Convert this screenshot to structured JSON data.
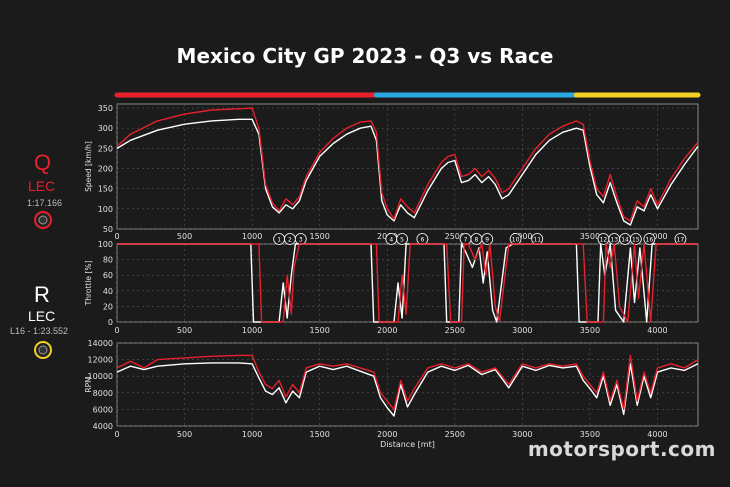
{
  "title": "Mexico City GP 2023 - Q3 vs Race",
  "legend": {
    "q": {
      "letter": "Q",
      "driver": "LEC",
      "time": "1:17.166",
      "color": "#e8202c"
    },
    "r": {
      "letter": "R",
      "driver": "LEC",
      "time": "L16 - 1:23.552",
      "color": "#ffffff"
    }
  },
  "watermark": "motorsport.com",
  "colors": {
    "background": "#1b1b1b",
    "q_line": "#e8202c",
    "r_line": "#ffffff",
    "sector1": "#e8202c",
    "sector2": "#29a8e0",
    "sector3": "#f2d024",
    "grid": "#5a5a5a"
  },
  "chart_data": [
    {
      "type": "line",
      "panel": "speed",
      "xlabel": "",
      "ylabel": "Speed [km/h]",
      "xlim": [
        0,
        4300
      ],
      "ylim": [
        50,
        360
      ],
      "xticks": [
        0,
        500,
        1000,
        1500,
        2000,
        2500,
        3000,
        3500,
        4000
      ],
      "yticks": [
        50,
        100,
        150,
        200,
        250,
        300,
        350
      ],
      "sectors": [
        {
          "from": 0,
          "to": 1920,
          "color": "#e8202c"
        },
        {
          "from": 1920,
          "to": 3400,
          "color": "#29a8e0"
        },
        {
          "from": 3400,
          "to": 4300,
          "color": "#f2d024"
        }
      ],
      "series": [
        {
          "name": "Q",
          "color": "#e8202c",
          "x": [
            0,
            100,
            300,
            500,
            700,
            900,
            1000,
            1050,
            1100,
            1150,
            1200,
            1250,
            1300,
            1350,
            1400,
            1500,
            1600,
            1700,
            1800,
            1880,
            1920,
            1960,
            2000,
            2050,
            2100,
            2150,
            2200,
            2300,
            2400,
            2450,
            2500,
            2550,
            2600,
            2650,
            2700,
            2750,
            2800,
            2850,
            2900,
            3000,
            3100,
            3200,
            3300,
            3400,
            3450,
            3500,
            3550,
            3600,
            3650,
            3700,
            3750,
            3800,
            3850,
            3900,
            3950,
            4000,
            4100,
            4200,
            4300
          ],
          "y": [
            255,
            285,
            318,
            335,
            345,
            348,
            350,
            300,
            160,
            115,
            95,
            125,
            110,
            130,
            180,
            240,
            275,
            300,
            315,
            318,
            290,
            140,
            100,
            75,
            125,
            105,
            90,
            160,
            215,
            230,
            235,
            180,
            185,
            200,
            180,
            195,
            175,
            140,
            150,
            200,
            250,
            285,
            305,
            318,
            310,
            220,
            150,
            130,
            185,
            130,
            80,
            70,
            120,
            105,
            150,
            110,
            175,
            225,
            265
          ]
        },
        {
          "name": "R",
          "color": "#ffffff",
          "x": [
            0,
            100,
            300,
            500,
            700,
            900,
            1000,
            1050,
            1100,
            1150,
            1200,
            1250,
            1300,
            1350,
            1400,
            1500,
            1600,
            1700,
            1800,
            1880,
            1920,
            1960,
            2000,
            2050,
            2100,
            2150,
            2200,
            2300,
            2400,
            2450,
            2500,
            2550,
            2600,
            2650,
            2700,
            2750,
            2800,
            2850,
            2900,
            3000,
            3100,
            3200,
            3300,
            3400,
            3450,
            3500,
            3550,
            3600,
            3650,
            3700,
            3750,
            3800,
            3850,
            3900,
            3950,
            4000,
            4100,
            4200,
            4300
          ],
          "y": [
            250,
            270,
            295,
            310,
            318,
            322,
            322,
            285,
            150,
            105,
            90,
            110,
            100,
            120,
            170,
            230,
            262,
            285,
            300,
            305,
            270,
            120,
            85,
            70,
            110,
            90,
            78,
            145,
            200,
            215,
            220,
            165,
            170,
            185,
            165,
            180,
            160,
            125,
            135,
            185,
            235,
            270,
            290,
            300,
            295,
            205,
            135,
            115,
            165,
            115,
            70,
            60,
            105,
            95,
            135,
            100,
            160,
            210,
            255
          ]
        }
      ]
    },
    {
      "type": "line",
      "panel": "throttle",
      "xlabel": "",
      "ylabel": "Throttle [%]",
      "xlim": [
        0,
        4300
      ],
      "ylim": [
        0,
        100
      ],
      "xticks": [
        0,
        500,
        1000,
        1500,
        2000,
        2500,
        3000,
        3500,
        4000
      ],
      "yticks": [
        0,
        20,
        40,
        60,
        80,
        100
      ],
      "corners": [
        {
          "label": "1",
          "x": 1200
        },
        {
          "label": "2",
          "x": 1280
        },
        {
          "label": "3",
          "x": 1360
        },
        {
          "label": "4",
          "x": 2030
        },
        {
          "label": "5",
          "x": 2110
        },
        {
          "label": "6",
          "x": 2260
        },
        {
          "label": "7",
          "x": 2580
        },
        {
          "label": "8",
          "x": 2660
        },
        {
          "label": "9",
          "x": 2740
        },
        {
          "label": "10",
          "x": 2950
        },
        {
          "label": "11",
          "x": 3110
        },
        {
          "label": "12",
          "x": 3600
        },
        {
          "label": "13",
          "x": 3680
        },
        {
          "label": "14",
          "x": 3760
        },
        {
          "label": "15",
          "x": 3840
        },
        {
          "label": "16",
          "x": 3940
        },
        {
          "label": "17",
          "x": 4170
        }
      ],
      "series": [
        {
          "name": "Q",
          "color": "#e8202c",
          "x": [
            0,
            1000,
            1050,
            1070,
            1230,
            1260,
            1290,
            1310,
            1350,
            1420,
            1900,
            1920,
            1940,
            2080,
            2110,
            2140,
            2170,
            2200,
            2240,
            2300,
            2440,
            2470,
            2550,
            2570,
            2600,
            2650,
            2700,
            2730,
            2760,
            2800,
            2830,
            2900,
            2950,
            3400,
            3450,
            3480,
            3600,
            3620,
            3650,
            3680,
            3720,
            3780,
            3830,
            3860,
            3900,
            3950,
            3990,
            4300
          ],
          "y": [
            100,
            100,
            100,
            0,
            0,
            60,
            10,
            70,
            100,
            100,
            100,
            100,
            0,
            0,
            60,
            10,
            100,
            100,
            100,
            100,
            100,
            0,
            0,
            100,
            100,
            80,
            100,
            60,
            100,
            20,
            0,
            100,
            100,
            100,
            100,
            0,
            0,
            100,
            70,
            100,
            20,
            0,
            100,
            30,
            100,
            0,
            100,
            100
          ]
        },
        {
          "name": "R",
          "color": "#ffffff",
          "x": [
            0,
            950,
            990,
            1010,
            1200,
            1230,
            1260,
            1290,
            1320,
            1380,
            1850,
            1880,
            1900,
            2050,
            2080,
            2110,
            2140,
            2180,
            2220,
            2280,
            2420,
            2440,
            2530,
            2550,
            2580,
            2630,
            2680,
            2710,
            2740,
            2780,
            2810,
            2880,
            2930,
            3350,
            3400,
            3420,
            3560,
            3580,
            3610,
            3650,
            3690,
            3750,
            3800,
            3830,
            3870,
            3920,
            3960,
            4300
          ],
          "y": [
            100,
            100,
            100,
            0,
            0,
            50,
            5,
            60,
            100,
            100,
            100,
            100,
            0,
            0,
            50,
            5,
            100,
            100,
            100,
            100,
            100,
            0,
            0,
            100,
            90,
            70,
            95,
            50,
            90,
            15,
            0,
            95,
            100,
            100,
            100,
            0,
            0,
            100,
            60,
            100,
            15,
            0,
            95,
            25,
            95,
            0,
            100,
            100
          ]
        }
      ]
    },
    {
      "type": "line",
      "panel": "rpm",
      "xlabel": "Distance [mt]",
      "ylabel": "RPM",
      "xlim": [
        0,
        4300
      ],
      "ylim": [
        4000,
        14000
      ],
      "xticks": [
        0,
        500,
        1000,
        1500,
        2000,
        2500,
        3000,
        3500,
        4000
      ],
      "yticks": [
        4000,
        6000,
        8000,
        10000,
        12000,
        14000
      ],
      "series": [
        {
          "name": "Q",
          "color": "#e8202c",
          "x": [
            0,
            100,
            200,
            300,
            500,
            700,
            900,
            1000,
            1050,
            1100,
            1150,
            1200,
            1250,
            1300,
            1350,
            1400,
            1500,
            1600,
            1700,
            1800,
            1900,
            1950,
            2000,
            2050,
            2100,
            2150,
            2200,
            2300,
            2400,
            2500,
            2600,
            2700,
            2800,
            2900,
            3000,
            3100,
            3200,
            3300,
            3400,
            3450,
            3500,
            3550,
            3600,
            3650,
            3700,
            3750,
            3800,
            3850,
            3900,
            3950,
            4000,
            4100,
            4200,
            4300
          ],
          "y": [
            11000,
            11800,
            11000,
            12000,
            12200,
            12400,
            12500,
            12500,
            10500,
            9000,
            8500,
            9500,
            7500,
            9000,
            8000,
            11000,
            11500,
            11200,
            11500,
            11000,
            10500,
            8000,
            7000,
            6000,
            9500,
            7000,
            8500,
            11000,
            11500,
            11000,
            11500,
            10500,
            11000,
            9000,
            11500,
            11000,
            11500,
            11200,
            11500,
            10000,
            9000,
            8000,
            10500,
            7000,
            9500,
            6000,
            12500,
            7000,
            10500,
            8000,
            11000,
            11500,
            11000,
            12000
          ]
        },
        {
          "name": "R",
          "color": "#ffffff",
          "x": [
            0,
            100,
            200,
            300,
            500,
            700,
            900,
            1000,
            1050,
            1100,
            1150,
            1200,
            1250,
            1300,
            1350,
            1400,
            1500,
            1600,
            1700,
            1800,
            1900,
            1950,
            2000,
            2050,
            2100,
            2150,
            2200,
            2300,
            2400,
            2500,
            2600,
            2700,
            2800,
            2900,
            3000,
            3100,
            3200,
            3300,
            3400,
            3450,
            3500,
            3550,
            3600,
            3650,
            3700,
            3750,
            3800,
            3850,
            3900,
            3950,
            4000,
            4100,
            4200,
            4300
          ],
          "y": [
            10500,
            11200,
            10800,
            11200,
            11500,
            11600,
            11600,
            11500,
            9800,
            8200,
            7800,
            8600,
            6800,
            8200,
            7400,
            10500,
            11200,
            10800,
            11200,
            10600,
            10000,
            7400,
            6200,
            5200,
            9000,
            6300,
            7800,
            10500,
            11200,
            10700,
            11300,
            10200,
            10800,
            8600,
            11200,
            10700,
            11300,
            11000,
            11200,
            9500,
            8500,
            7400,
            10000,
            6500,
            9000,
            5400,
            11500,
            6500,
            10000,
            7400,
            10500,
            11000,
            10700,
            11500
          ]
        }
      ]
    }
  ]
}
